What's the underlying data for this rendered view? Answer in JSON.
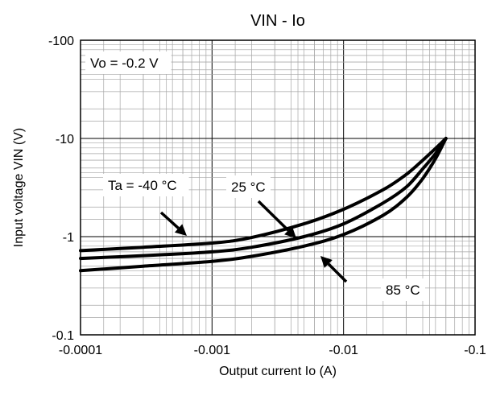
{
  "chart_data": {
    "type": "line",
    "title": "VIN - Io",
    "xlabel": "Output current Io (A)",
    "ylabel": "Input voltage VIN (V)",
    "x_scale": "log",
    "y_scale": "log",
    "xlim": [
      -0.0001,
      -0.1
    ],
    "ylim": [
      -0.1,
      -100
    ],
    "x_ticks": [
      -0.0001,
      -0.001,
      -0.01,
      -0.1
    ],
    "x_tick_labels": [
      "-0.0001",
      "-0.001",
      "-0.01",
      "-0.1"
    ],
    "y_ticks": [
      -0.1,
      -1,
      -10,
      -100
    ],
    "y_tick_labels": [
      "-0.1",
      "-1",
      "-10",
      "-100"
    ],
    "grid": true,
    "series": [
      {
        "name": "Ta = -40 °C",
        "x": [
          -0.0001,
          -0.0003,
          -0.001,
          -0.002,
          -0.005,
          -0.01,
          -0.02,
          -0.03,
          -0.04,
          -0.05,
          -0.06
        ],
        "y": [
          -0.72,
          -0.78,
          -0.86,
          -0.98,
          -1.35,
          -1.9,
          -3.0,
          -4.3,
          -6.0,
          -7.9,
          -10.0
        ]
      },
      {
        "name": "25 °C",
        "x": [
          -0.0001,
          -0.0003,
          -0.001,
          -0.002,
          -0.005,
          -0.01,
          -0.02,
          -0.03,
          -0.04,
          -0.05,
          -0.06
        ],
        "y": [
          -0.6,
          -0.64,
          -0.7,
          -0.78,
          -1.0,
          -1.35,
          -2.2,
          -3.2,
          -4.9,
          -7.0,
          -10.0
        ]
      },
      {
        "name": "85 °C",
        "x": [
          -0.0001,
          -0.0003,
          -0.001,
          -0.002,
          -0.005,
          -0.01,
          -0.02,
          -0.03,
          -0.04,
          -0.05,
          -0.06
        ],
        "y": [
          -0.45,
          -0.5,
          -0.56,
          -0.63,
          -0.8,
          -1.05,
          -1.65,
          -2.5,
          -3.9,
          -6.2,
          -10.0
        ]
      }
    ],
    "annotations": [
      {
        "text": "Vo = -0.2 V"
      },
      {
        "text": "Ta = -40 °C",
        "target_series": 0
      },
      {
        "text": "25 °C",
        "target_series": 1
      },
      {
        "text": "85 °C",
        "target_series": 2
      }
    ]
  }
}
